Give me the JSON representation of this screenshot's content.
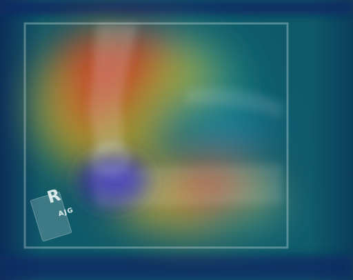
{
  "image": {
    "marker_letter": "R",
    "marker_initials": "AJG",
    "colormap": {
      "low": "#1a1a8a",
      "mid": "#1f8a8a",
      "high": "#c4222a"
    }
  }
}
